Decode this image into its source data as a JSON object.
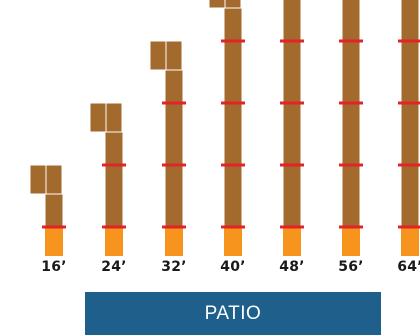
{
  "colors": {
    "wood": "#a36a2d",
    "wood_edge": "#ffffff",
    "footing": "#f7941d",
    "joint": "#e3232a",
    "patio": "#1f5f8b"
  },
  "columns": [
    {
      "label": "16’",
      "segments": 1
    },
    {
      "label": "24’",
      "segments": 2
    },
    {
      "label": "32’",
      "segments": 3
    },
    {
      "label": "40’",
      "segments": 4
    },
    {
      "label": "48’",
      "segments": 5
    },
    {
      "label": "56’",
      "segments": 6
    },
    {
      "label": "64’",
      "segments": 7
    }
  ],
  "patio": {
    "label": "PATIO"
  }
}
